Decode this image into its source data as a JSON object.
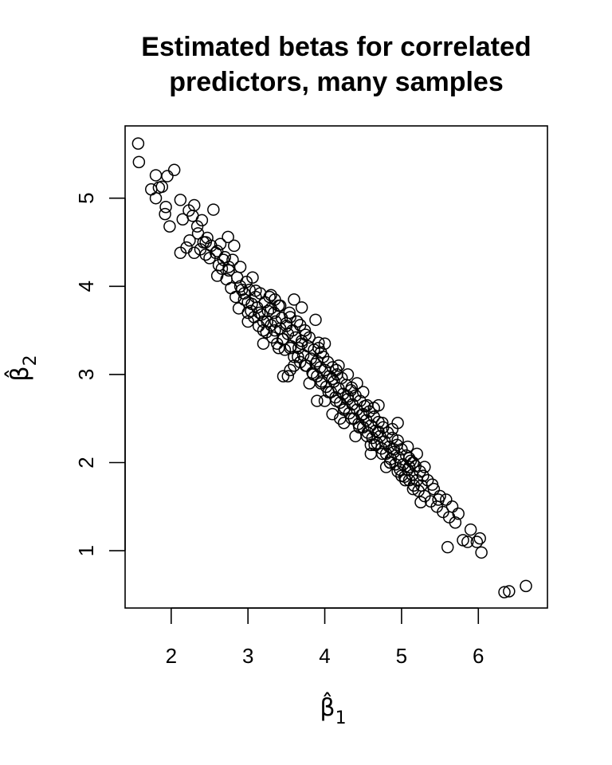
{
  "chart_data": {
    "type": "scatter",
    "title": "Estimated betas for correlated predictors, many samples",
    "title_lines": [
      "Estimated betas for correlated",
      "predictors, many samples"
    ],
    "xlabel": "β̂1",
    "ylabel": "β̂2",
    "xlabel_parts": {
      "symbol": "β̂",
      "subscript": "1"
    },
    "ylabel_parts": {
      "symbol": "β̂",
      "subscript": "2"
    },
    "xlim": [
      1.4,
      6.9
    ],
    "ylim": [
      0.35,
      5.82
    ],
    "xticks": [
      "2",
      "3",
      "4",
      "5",
      "6"
    ],
    "yticks": [
      "1",
      "2",
      "3",
      "4",
      "5"
    ],
    "grid": false,
    "marker": "open-circle",
    "marker_color": "#000000",
    "series": [
      {
        "points": [
          [
            1.57,
            5.62
          ],
          [
            1.58,
            5.41
          ],
          [
            1.74,
            5.1
          ],
          [
            1.8,
            5.26
          ],
          [
            1.8,
            5.0
          ],
          [
            1.84,
            5.12
          ],
          [
            1.88,
            5.13
          ],
          [
            1.92,
            4.82
          ],
          [
            1.93,
            4.9
          ],
          [
            1.95,
            5.25
          ],
          [
            1.98,
            4.68
          ],
          [
            2.04,
            5.32
          ],
          [
            2.12,
            4.98
          ],
          [
            2.12,
            4.38
          ],
          [
            2.15,
            4.76
          ],
          [
            2.2,
            4.44
          ],
          [
            2.23,
            4.86
          ],
          [
            2.24,
            4.52
          ],
          [
            2.28,
            4.8
          ],
          [
            2.3,
            4.92
          ],
          [
            2.3,
            4.38
          ],
          [
            2.34,
            4.68
          ],
          [
            2.35,
            4.6
          ],
          [
            2.38,
            4.42
          ],
          [
            2.4,
            4.75
          ],
          [
            2.42,
            4.5
          ],
          [
            2.45,
            4.36
          ],
          [
            2.47,
            4.55
          ],
          [
            2.5,
            4.32
          ],
          [
            2.52,
            4.46
          ],
          [
            2.55,
            4.87
          ],
          [
            2.58,
            4.38
          ],
          [
            2.6,
            4.12
          ],
          [
            2.62,
            4.24
          ],
          [
            2.64,
            4.48
          ],
          [
            2.66,
            4.2
          ],
          [
            2.7,
            4.33
          ],
          [
            2.72,
            4.08
          ],
          [
            2.74,
            4.56
          ],
          [
            2.75,
            4.18
          ],
          [
            2.78,
            3.98
          ],
          [
            2.8,
            4.3
          ],
          [
            2.82,
            4.46
          ],
          [
            2.84,
            3.88
          ],
          [
            2.86,
            4.1
          ],
          [
            2.88,
            3.75
          ],
          [
            2.9,
            4.22
          ],
          [
            2.92,
            3.96
          ],
          [
            2.95,
            3.85
          ],
          [
            2.98,
            4.05
          ],
          [
            3.0,
            3.82
          ],
          [
            3.02,
            3.96
          ],
          [
            3.04,
            3.72
          ],
          [
            3.06,
            4.1
          ],
          [
            3.08,
            3.65
          ],
          [
            3.1,
            3.88
          ],
          [
            3.12,
            3.76
          ],
          [
            3.14,
            3.55
          ],
          [
            3.16,
            3.92
          ],
          [
            3.18,
            3.68
          ],
          [
            3.2,
            3.6
          ],
          [
            3.22,
            3.82
          ],
          [
            3.24,
            3.48
          ],
          [
            3.26,
            3.72
          ],
          [
            3.28,
            3.88
          ],
          [
            3.3,
            3.56
          ],
          [
            3.32,
            3.42
          ],
          [
            3.34,
            3.7
          ],
          [
            3.36,
            3.6
          ],
          [
            3.38,
            3.35
          ],
          [
            3.4,
            3.78
          ],
          [
            3.42,
            3.52
          ],
          [
            3.44,
            3.64
          ],
          [
            3.46,
            3.4
          ],
          [
            3.48,
            3.28
          ],
          [
            3.5,
            3.58
          ],
          [
            3.52,
            3.46
          ],
          [
            3.54,
            3.7
          ],
          [
            3.56,
            3.32
          ],
          [
            3.58,
            3.5
          ],
          [
            3.6,
            3.2
          ],
          [
            3.62,
            3.42
          ],
          [
            3.64,
            3.6
          ],
          [
            3.66,
            3.3
          ],
          [
            3.68,
            3.14
          ],
          [
            3.7,
            3.38
          ],
          [
            3.72,
            3.22
          ],
          [
            3.74,
            3.5
          ],
          [
            3.76,
            3.1
          ],
          [
            3.78,
            3.32
          ],
          [
            3.8,
            3.42
          ],
          [
            3.82,
            3.18
          ],
          [
            3.84,
            3.02
          ],
          [
            3.86,
            3.28
          ],
          [
            3.88,
            3.12
          ],
          [
            3.9,
            2.98
          ],
          [
            3.92,
            3.3
          ],
          [
            3.94,
            3.08
          ],
          [
            3.96,
            2.92
          ],
          [
            3.98,
            3.2
          ],
          [
            4.0,
            3.05
          ],
          [
            4.02,
            2.86
          ],
          [
            4.04,
            3.14
          ],
          [
            4.06,
            2.98
          ],
          [
            4.08,
            2.8
          ],
          [
            4.1,
            3.08
          ],
          [
            4.12,
            2.92
          ],
          [
            4.14,
            2.74
          ],
          [
            4.16,
            3.0
          ],
          [
            4.18,
            2.84
          ],
          [
            4.2,
            2.68
          ],
          [
            4.22,
            2.96
          ],
          [
            4.24,
            2.78
          ],
          [
            4.26,
            2.62
          ],
          [
            4.28,
            2.88
          ],
          [
            4.3,
            2.72
          ],
          [
            4.32,
            2.56
          ],
          [
            4.34,
            2.82
          ],
          [
            4.36,
            2.66
          ],
          [
            4.38,
            2.5
          ],
          [
            4.4,
            2.76
          ],
          [
            4.42,
            2.6
          ],
          [
            4.44,
            2.44
          ],
          [
            4.46,
            2.7
          ],
          [
            4.48,
            2.54
          ],
          [
            4.5,
            2.4
          ],
          [
            4.52,
            2.64
          ],
          [
            4.54,
            2.48
          ],
          [
            4.56,
            2.34
          ],
          [
            4.58,
            2.58
          ],
          [
            4.6,
            2.42
          ],
          [
            4.62,
            2.28
          ],
          [
            4.64,
            2.52
          ],
          [
            4.66,
            2.36
          ],
          [
            4.68,
            2.22
          ],
          [
            4.7,
            2.46
          ],
          [
            4.72,
            2.3
          ],
          [
            4.74,
            2.16
          ],
          [
            4.76,
            2.4
          ],
          [
            4.78,
            2.24
          ],
          [
            4.8,
            2.1
          ],
          [
            4.82,
            2.34
          ],
          [
            4.84,
            2.18
          ],
          [
            4.86,
            2.04
          ],
          [
            4.88,
            2.28
          ],
          [
            4.9,
            2.12
          ],
          [
            4.92,
            1.98
          ],
          [
            4.94,
            2.2
          ],
          [
            4.96,
            2.06
          ],
          [
            4.98,
            1.92
          ],
          [
            5.0,
            2.15
          ],
          [
            5.02,
            1.98
          ],
          [
            5.04,
            1.84
          ],
          [
            5.06,
            2.08
          ],
          [
            5.08,
            1.92
          ],
          [
            5.1,
            1.8
          ],
          [
            5.12,
            2.02
          ],
          [
            5.14,
            1.86
          ],
          [
            5.16,
            1.74
          ],
          [
            5.18,
            1.96
          ],
          [
            5.2,
            1.8
          ],
          [
            5.22,
            1.68
          ],
          [
            5.24,
            1.9
          ],
          [
            5.26,
            1.74
          ],
          [
            5.3,
            1.62
          ],
          [
            5.34,
            1.8
          ],
          [
            5.38,
            1.56
          ],
          [
            5.42,
            1.7
          ],
          [
            5.46,
            1.5
          ],
          [
            5.5,
            1.62
          ],
          [
            5.54,
            1.44
          ],
          [
            5.58,
            1.58
          ],
          [
            5.62,
            1.38
          ],
          [
            5.66,
            1.5
          ],
          [
            5.7,
            1.32
          ],
          [
            5.74,
            1.42
          ],
          [
            5.6,
            1.04
          ],
          [
            5.8,
            1.12
          ],
          [
            5.86,
            1.1
          ],
          [
            5.9,
            1.24
          ],
          [
            5.98,
            1.1
          ],
          [
            6.02,
            1.14
          ],
          [
            6.04,
            0.98
          ],
          [
            6.34,
            0.53
          ],
          [
            6.4,
            0.54
          ],
          [
            6.62,
            0.6
          ],
          [
            3.7,
            3.76
          ],
          [
            3.46,
            2.98
          ],
          [
            3.52,
            2.98
          ],
          [
            3.88,
            3.62
          ],
          [
            3.0,
            3.6
          ],
          [
            3.2,
            3.35
          ],
          [
            3.3,
            3.9
          ],
          [
            3.55,
            3.05
          ],
          [
            3.6,
            3.85
          ],
          [
            3.9,
            2.7
          ],
          [
            4.0,
            3.35
          ],
          [
            4.1,
            2.55
          ],
          [
            4.3,
            3.0
          ],
          [
            4.25,
            2.45
          ],
          [
            4.5,
            2.8
          ],
          [
            4.6,
            2.2
          ],
          [
            4.7,
            2.65
          ],
          [
            4.85,
            2.0
          ],
          [
            4.95,
            2.45
          ],
          [
            5.1,
            1.95
          ],
          [
            5.2,
            2.1
          ],
          [
            5.25,
            1.55
          ],
          [
            5.4,
            1.75
          ],
          [
            5.3,
            1.95
          ],
          [
            2.6,
            4.4
          ],
          [
            2.75,
            4.22
          ],
          [
            2.9,
            4.0
          ],
          [
            3.05,
            3.8
          ],
          [
            3.15,
            3.7
          ],
          [
            3.25,
            3.6
          ],
          [
            3.35,
            3.5
          ],
          [
            3.45,
            3.4
          ],
          [
            3.55,
            3.3
          ],
          [
            3.65,
            3.2
          ],
          [
            3.75,
            3.1
          ],
          [
            3.85,
            3.0
          ],
          [
            3.95,
            2.9
          ],
          [
            4.05,
            2.8
          ],
          [
            4.15,
            2.7
          ],
          [
            4.25,
            2.6
          ],
          [
            4.35,
            2.5
          ],
          [
            4.45,
            2.4
          ],
          [
            4.55,
            2.3
          ],
          [
            4.65,
            2.2
          ],
          [
            4.75,
            2.1
          ],
          [
            4.85,
            2.0
          ],
          [
            4.95,
            1.9
          ],
          [
            5.05,
            1.8
          ],
          [
            5.15,
            1.7
          ],
          [
            3.1,
            3.95
          ],
          [
            3.3,
            3.75
          ],
          [
            3.5,
            3.55
          ],
          [
            3.7,
            3.35
          ],
          [
            3.9,
            3.15
          ],
          [
            4.1,
            2.95
          ],
          [
            4.3,
            2.75
          ],
          [
            4.5,
            2.55
          ],
          [
            4.7,
            2.35
          ],
          [
            4.9,
            2.15
          ],
          [
            5.1,
            2.05
          ],
          [
            3.0,
            3.7
          ],
          [
            3.2,
            3.5
          ],
          [
            3.4,
            3.3
          ],
          [
            3.6,
            3.1
          ],
          [
            3.8,
            2.9
          ],
          [
            4.0,
            2.7
          ],
          [
            4.2,
            2.5
          ],
          [
            4.4,
            2.3
          ],
          [
            4.6,
            2.1
          ],
          [
            4.8,
            1.95
          ],
          [
            5.0,
            1.85
          ],
          [
            3.35,
            3.85
          ],
          [
            3.55,
            3.65
          ],
          [
            3.75,
            3.45
          ],
          [
            3.95,
            3.25
          ],
          [
            4.15,
            3.05
          ],
          [
            4.35,
            2.85
          ],
          [
            4.55,
            2.65
          ],
          [
            4.75,
            2.45
          ],
          [
            4.95,
            2.25
          ],
          [
            5.15,
            2.0
          ],
          [
            2.45,
            4.5
          ],
          [
            2.68,
            4.3
          ],
          [
            2.95,
            3.92
          ],
          [
            3.42,
            3.78
          ],
          [
            3.68,
            3.56
          ],
          [
            3.92,
            3.36
          ],
          [
            4.18,
            3.1
          ],
          [
            4.42,
            2.9
          ],
          [
            4.64,
            2.62
          ],
          [
            4.88,
            2.38
          ],
          [
            5.08,
            2.18
          ],
          [
            5.28,
            1.85
          ],
          [
            5.48,
            1.58
          ]
        ]
      }
    ]
  }
}
